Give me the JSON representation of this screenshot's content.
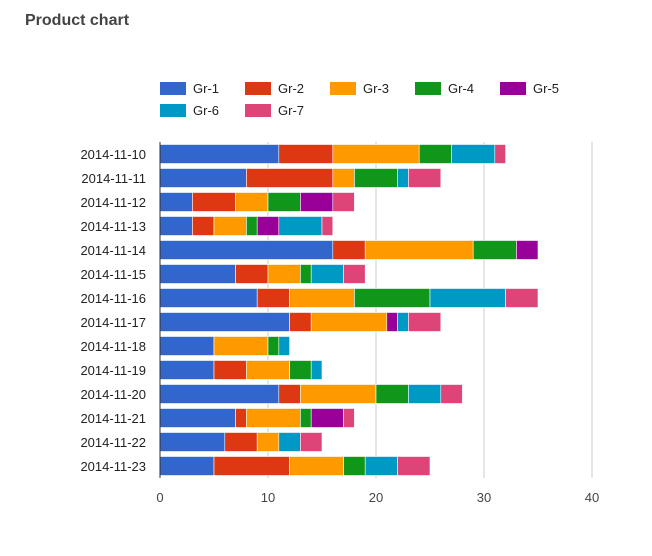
{
  "panel": {
    "title": "Product chart"
  },
  "colors": {
    "Gr-1": "#3366cc",
    "Gr-2": "#dc3912",
    "Gr-3": "#ff9900",
    "Gr-4": "#109618",
    "Gr-5": "#990099",
    "Gr-6": "#0099c6",
    "Gr-7": "#dd4477"
  },
  "chart_data": {
    "type": "bar",
    "orientation": "horizontal",
    "stacked": true,
    "categories": [
      "2014-11-10",
      "2014-11-11",
      "2014-11-12",
      "2014-11-13",
      "2014-11-14",
      "2014-11-15",
      "2014-11-16",
      "2014-11-17",
      "2014-11-18",
      "2014-11-19",
      "2014-11-20",
      "2014-11-21",
      "2014-11-22",
      "2014-11-23"
    ],
    "series": [
      {
        "name": "Gr-1",
        "values": [
          11,
          8,
          3,
          3,
          16,
          7,
          9,
          12,
          5,
          5,
          11,
          7,
          6,
          5
        ]
      },
      {
        "name": "Gr-2",
        "values": [
          5,
          8,
          4,
          2,
          3,
          3,
          3,
          2,
          0,
          3,
          2,
          1,
          3,
          7
        ]
      },
      {
        "name": "Gr-3",
        "values": [
          8,
          2,
          3,
          3,
          10,
          3,
          6,
          7,
          5,
          4,
          7,
          5,
          2,
          5
        ]
      },
      {
        "name": "Gr-4",
        "values": [
          3,
          4,
          3,
          1,
          4,
          1,
          7,
          0,
          1,
          2,
          3,
          1,
          0,
          2
        ]
      },
      {
        "name": "Gr-5",
        "values": [
          0,
          0,
          3,
          2,
          2,
          0,
          0,
          1,
          0,
          0,
          0,
          3,
          0,
          0
        ]
      },
      {
        "name": "Gr-6",
        "values": [
          4,
          1,
          0,
          4,
          0,
          3,
          7,
          1,
          1,
          1,
          3,
          0,
          2,
          3
        ]
      },
      {
        "name": "Gr-7",
        "values": [
          1,
          3,
          2,
          1,
          0,
          2,
          3,
          3,
          0,
          0,
          2,
          1,
          2,
          3
        ]
      }
    ],
    "xticks": [
      "0",
      "10",
      "20",
      "30",
      "40"
    ],
    "xlim": [
      0,
      40
    ],
    "grid": true,
    "legend": "top"
  }
}
